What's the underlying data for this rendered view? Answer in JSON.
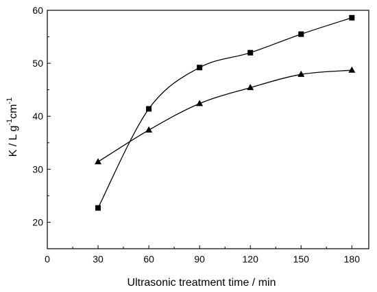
{
  "chart_data": {
    "type": "line",
    "xlabel": "Ultrasonic treatment time / min",
    "ylabel": {
      "base": "K / L g",
      "exp1": "-1",
      "mid": "cm",
      "exp2": "-1"
    },
    "xlim": [
      0,
      190
    ],
    "ylim": [
      15,
      60
    ],
    "xticks": [
      0,
      30,
      60,
      90,
      120,
      150,
      180
    ],
    "yticks": [
      20,
      30,
      40,
      50,
      60
    ],
    "grid": false,
    "legend": "none",
    "x": [
      30,
      60,
      90,
      120,
      150,
      180
    ],
    "series": [
      {
        "marker": "square",
        "color": "#000000",
        "values": [
          22.7,
          41.4,
          49.2,
          52.0,
          55.5,
          58.6
        ]
      },
      {
        "marker": "triangle",
        "color": "#000000",
        "values": [
          31.4,
          37.4,
          42.4,
          45.4,
          47.9,
          48.7
        ]
      }
    ]
  }
}
